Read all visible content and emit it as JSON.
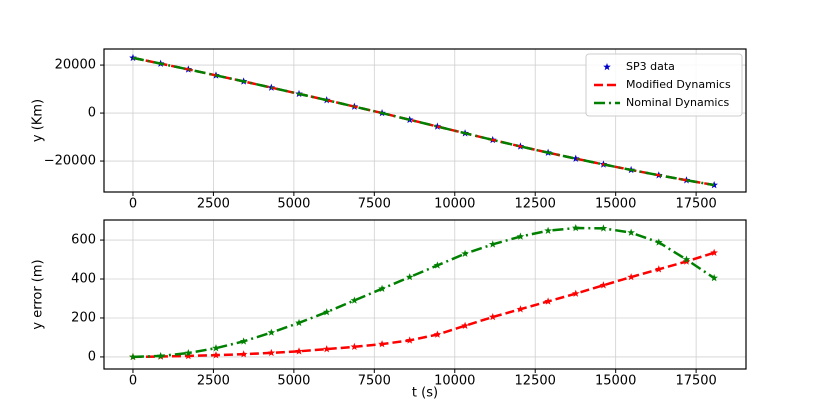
{
  "chart_data": [
    {
      "type": "line",
      "ylabel": "y (Km)",
      "x": [
        0,
        860,
        1720,
        2580,
        3440,
        4300,
        5160,
        6020,
        6880,
        7740,
        8600,
        9460,
        10320,
        11180,
        12040,
        12900,
        13760,
        14620,
        15480,
        16340,
        17200,
        18060
      ],
      "series": [
        {
          "name": "SP3 data",
          "color": "#0000cc",
          "linestyle": "none",
          "marker": "star",
          "values": [
            23000,
            20600,
            18200,
            15700,
            13200,
            10600,
            8000,
            5400,
            2700,
            0,
            -2800,
            -5600,
            -8400,
            -11200,
            -13900,
            -16500,
            -19000,
            -21400,
            -23700,
            -25900,
            -28000,
            -30000
          ]
        },
        {
          "name": "Modified Dynamics",
          "color": "#ff0000",
          "linestyle": "dashed",
          "marker": "none",
          "values": [
            23000,
            20600,
            18200,
            15700,
            13200,
            10600,
            8000,
            5400,
            2700,
            0,
            -2800,
            -5600,
            -8400,
            -11200,
            -13900,
            -16500,
            -19000,
            -21400,
            -23700,
            -25900,
            -28000,
            -30000
          ]
        },
        {
          "name": "Nominal Dynamics",
          "color": "#008000",
          "linestyle": "dashdot",
          "marker": "none",
          "values": [
            23000,
            20600,
            18200,
            15700,
            13200,
            10600,
            8000,
            5400,
            2700,
            0,
            -2800,
            -5600,
            -8400,
            -11200,
            -13900,
            -16500,
            -19000,
            -21400,
            -23700,
            -25900,
            -28000,
            -30000
          ]
        }
      ],
      "xlim": [
        -900,
        19050
      ],
      "ylim": [
        -32900,
        26700
      ],
      "xticks": [
        0,
        2500,
        5000,
        7500,
        10000,
        12500,
        15000,
        17500
      ],
      "yticks": [
        {
          "value": -20000,
          "label": "−20000"
        },
        0,
        20000
      ],
      "grid": true,
      "legend": "upper right"
    },
    {
      "type": "line",
      "xlabel": "t (s)",
      "ylabel": "y error (m)",
      "x": [
        0,
        860,
        1720,
        2580,
        3440,
        4300,
        5160,
        6020,
        6880,
        7740,
        8600,
        9460,
        10320,
        11180,
        12040,
        12900,
        13760,
        14620,
        15480,
        16340,
        17200,
        18060
      ],
      "series": [
        {
          "color": "#ff0000",
          "linestyle": "dashed",
          "marker": "star",
          "marker_color": "#ff0000",
          "values": [
            0,
            2,
            5,
            9,
            14,
            21,
            29,
            40,
            52,
            66,
            85,
            115,
            160,
            205,
            245,
            285,
            325,
            368,
            410,
            450,
            490,
            535
          ]
        },
        {
          "color": "#008000",
          "linestyle": "dashdot",
          "marker": "star",
          "marker_color": "#008000",
          "values": [
            0,
            5,
            20,
            45,
            80,
            125,
            175,
            230,
            290,
            350,
            410,
            470,
            530,
            578,
            618,
            648,
            662,
            660,
            638,
            588,
            500,
            405
          ]
        }
      ],
      "xlim": [
        -900,
        19050
      ],
      "ylim": [
        -62,
        703
      ],
      "xticks": [
        0,
        2500,
        5000,
        7500,
        10000,
        12500,
        15000,
        17500
      ],
      "yticks": [
        0,
        200,
        400,
        600
      ],
      "grid": true
    }
  ]
}
